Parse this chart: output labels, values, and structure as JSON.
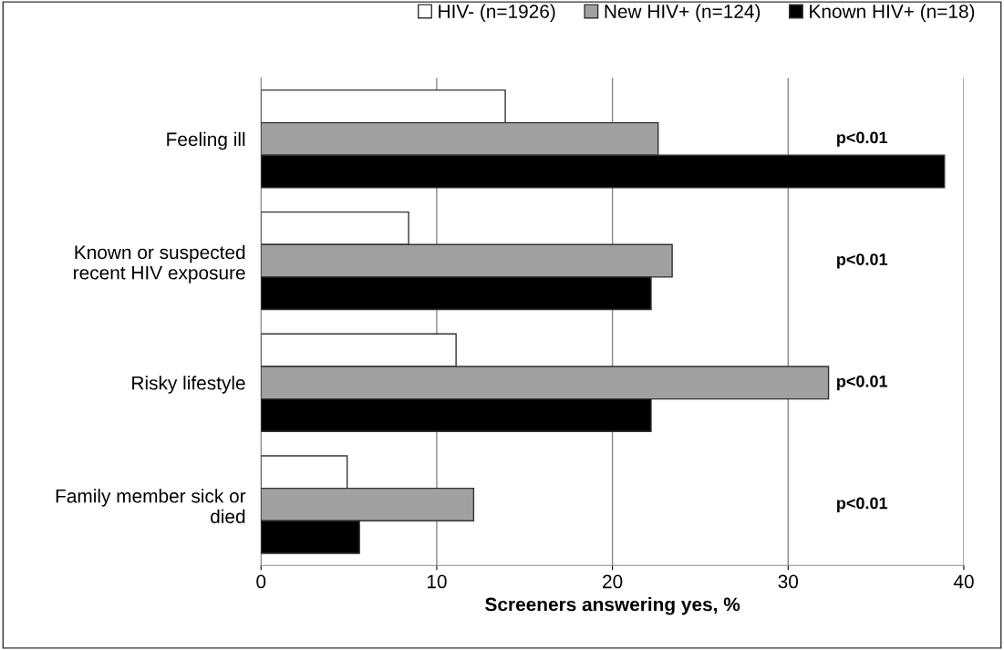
{
  "chart_data": {
    "type": "bar",
    "orientation": "horizontal",
    "xlabel": "Screeners answering yes, %",
    "categories": [
      "Feeling ill",
      "Known or suspected\nrecent HIV exposure",
      "Risky lifestyle",
      "Family member sick or\ndied"
    ],
    "series": [
      {
        "name": "HIV- (n=1926)",
        "color": "#ffffff",
        "values": [
          13.9,
          8.4,
          11.1,
          4.9
        ]
      },
      {
        "name": "New HIV+ (n=124)",
        "color": "#a0a0a0",
        "values": [
          22.6,
          23.4,
          32.3,
          12.1
        ]
      },
      {
        "name": "Known HIV+ (n=18)",
        "color": "#000000",
        "values": [
          38.9,
          22.2,
          22.2,
          5.6
        ]
      }
    ],
    "annotations": [
      "p<0.01",
      "p<0.01",
      "p<0.01",
      "p<0.01"
    ],
    "xlim": [
      0,
      40
    ],
    "xticks": [
      0,
      10,
      20,
      30,
      40
    ],
    "grid": "x",
    "legend": "top"
  }
}
